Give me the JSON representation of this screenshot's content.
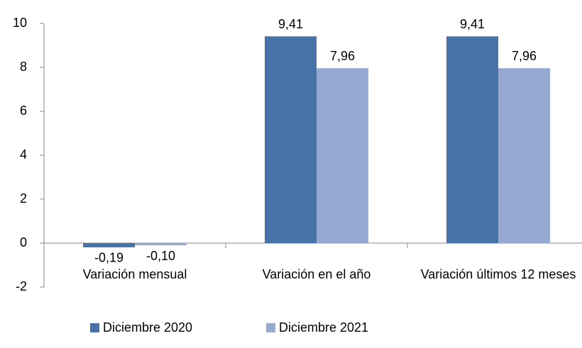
{
  "chart_data": {
    "type": "bar",
    "categories": [
      "Variación mensual",
      "Variación en el año",
      "Variación últimos 12 meses"
    ],
    "series": [
      {
        "name": "Diciembre 2020",
        "color": "#4672a8",
        "values": [
          -0.19,
          9.41,
          9.41
        ],
        "value_labels": [
          "-0,19",
          "9,41",
          "9,41"
        ]
      },
      {
        "name": "Diciembre 2021",
        "color": "#95a9d3",
        "values": [
          -0.1,
          7.96,
          7.96
        ],
        "value_labels": [
          "-0,10",
          "7,96",
          "7,96"
        ]
      }
    ],
    "ylim": [
      -2,
      10
    ],
    "yticks": [
      -2,
      0,
      2,
      4,
      6,
      8,
      10
    ],
    "grid": false,
    "legend": "bottom"
  }
}
